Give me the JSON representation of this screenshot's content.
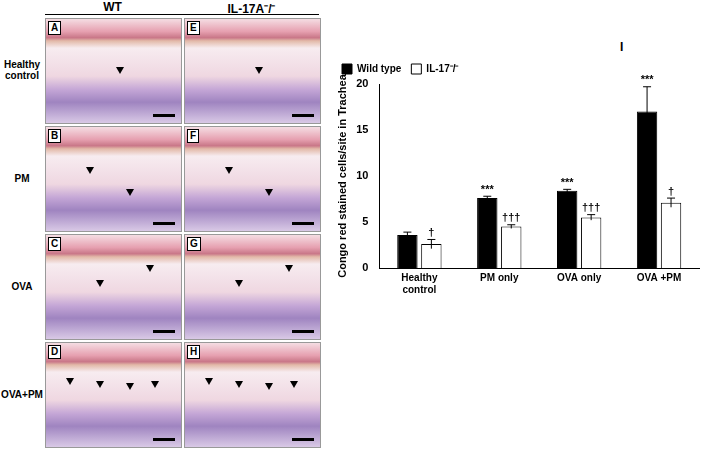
{
  "figure": {
    "column_headers": [
      "WT",
      "IL-17A⁻/⁻"
    ],
    "row_labels": [
      "Healthy control",
      "PM",
      "OVA",
      "OVA+PM"
    ],
    "panel_letters": [
      [
        "A",
        "E"
      ],
      [
        "B",
        "F"
      ],
      [
        "C",
        "G"
      ],
      [
        "D",
        "H"
      ]
    ],
    "chart_panel_label": "I"
  },
  "chart_data": {
    "type": "bar",
    "y_label": "Congo red stained cells/site in Trachea",
    "categories": [
      "Healthy control",
      "PM only",
      "OVA only",
      "OVA +PM"
    ],
    "series": [
      {
        "name": "Wild type",
        "color": "#000000",
        "values": [
          3.6,
          7.6,
          8.4,
          17.0
        ],
        "errors": [
          0.3,
          0.2,
          0.15,
          2.7
        ],
        "significance": [
          null,
          "***",
          "***",
          "***"
        ]
      },
      {
        "name": "IL-17⁻/⁻",
        "color": "#ffffff",
        "values": [
          2.6,
          4.5,
          5.5,
          7.1
        ],
        "errors": [
          0.5,
          0.2,
          0.3,
          0.5
        ],
        "significance": [
          "†",
          "†††",
          "†††",
          "†"
        ]
      }
    ],
    "ylim": [
      0,
      20
    ],
    "yticks": [
      0,
      5,
      10,
      15,
      20
    ],
    "grid": false,
    "legend": "top-left"
  }
}
